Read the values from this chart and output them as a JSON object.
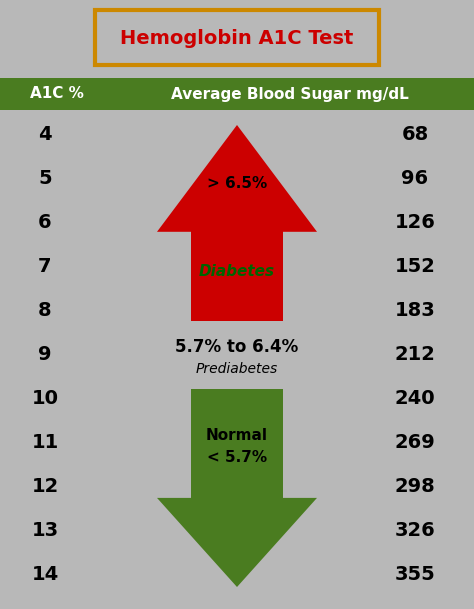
{
  "title": "Hemoglobin A1C Test",
  "title_color": "#cc0000",
  "title_box_color": "#cc8800",
  "header_bg": "#4a7c20",
  "header_text_left": "A1C %",
  "header_text_right": "Average Blood Sugar mg/dL",
  "header_text_color": "#ffffff",
  "bg_color": "#b8b8b8",
  "a1c_values": [
    4,
    5,
    6,
    7,
    8,
    9,
    10,
    11,
    12,
    13,
    14
  ],
  "sugar_values": [
    68,
    96,
    126,
    152,
    183,
    212,
    240,
    269,
    298,
    326,
    355
  ],
  "red_arrow_label1": "> 6.5%",
  "red_arrow_label2": "Diabetes",
  "prediabetes_label1": "5.7% to 6.4%",
  "prediabetes_label2": "Prediabetes",
  "green_arrow_label1": "Normal",
  "green_arrow_label2": "< 5.7%",
  "red_arrow_color": "#cc0000",
  "green_arrow_color": "#4a7c20",
  "number_color": "#000000"
}
